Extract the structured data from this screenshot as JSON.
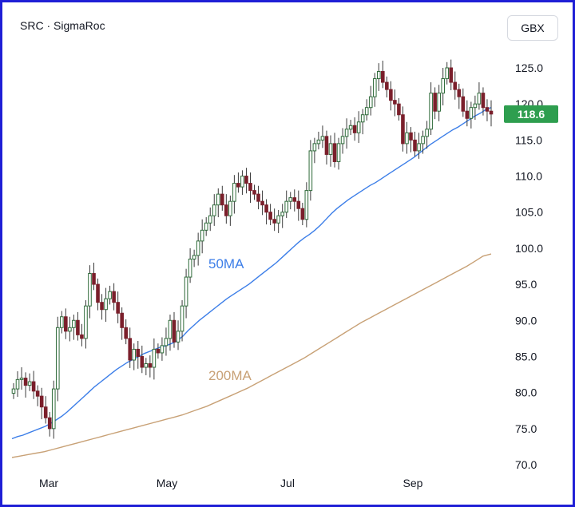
{
  "header": {
    "title": "SRC · SigmaRoc",
    "currency_button": "GBX"
  },
  "chart_data": {
    "type": "candlestick",
    "title": "SRC · SigmaRoc",
    "currency": "GBX",
    "ylim": [
      70,
      127
    ],
    "y_ticks": [
      "125.0",
      "120.0",
      "115.0",
      "110.0",
      "105.0",
      "100.0",
      "95.0",
      "90.0",
      "85.0",
      "80.0",
      "75.0",
      "70.0"
    ],
    "x_ticks": [
      "Mar",
      "May",
      "Jul",
      "Sep"
    ],
    "last_price": 118.6,
    "last_price_label": "118.6",
    "colors": {
      "up": "#2f6b3a",
      "down": "#7a1f2b",
      "wick": "#3a3a3a",
      "ma50": "#3c7ee8",
      "ma200": "#c8a176",
      "last": "#2e9e4f"
    },
    "annotations": [
      {
        "label": "50MA",
        "color": "#3c7ee8"
      },
      {
        "label": "200MA",
        "color": "#c8a176"
      }
    ],
    "series": [
      {
        "name": "SRC",
        "close": [
          80.5,
          81.8,
          82.0,
          81.0,
          81.5,
          80.2,
          79.5,
          78.0,
          76.5,
          75.0,
          80.5,
          89.0,
          90.5,
          88.5,
          89.0,
          90.0,
          88.0,
          87.5,
          92.0,
          96.5,
          95.0,
          92.5,
          91.5,
          93.0,
          94.0,
          92.5,
          91.0,
          89.0,
          87.5,
          84.5,
          86.0,
          85.0,
          83.5,
          84.0,
          83.5,
          86.0,
          85.5,
          86.5,
          87.5,
          90.0,
          87.0,
          88.5,
          92.0,
          96.0,
          98.5,
          99.0,
          101.0,
          102.5,
          103.5,
          104.5,
          106.0,
          107.5,
          106.0,
          104.5,
          106.5,
          109.0,
          108.5,
          110.0,
          109.0,
          108.0,
          107.5,
          106.5,
          106.0,
          105.0,
          104.0,
          103.5,
          104.5,
          105.0,
          106.5,
          107.0,
          106.5,
          105.5,
          104.0,
          108.0,
          113.5,
          114.5,
          115.0,
          115.5,
          113.0,
          114.5,
          112.0,
          114.5,
          115.5,
          116.5,
          117.0,
          116.0,
          117.5,
          118.5,
          119.5,
          121.0,
          123.5,
          124.5,
          123.0,
          122.0,
          120.5,
          120.0,
          118.5,
          114.5,
          116.0,
          115.0,
          113.5,
          114.5,
          115.5,
          116.5,
          121.5,
          119.0,
          121.5,
          123.5,
          125.0,
          123.0,
          122.0,
          121.0,
          119.0,
          118.0,
          119.5,
          120.0,
          121.5,
          119.5,
          119.0,
          118.6
        ],
        "ma50": [
          73.6,
          73.9,
          74.1,
          74.4,
          74.7,
          75.0,
          75.3,
          75.7,
          76.2,
          76.7,
          77.3,
          78.0,
          78.7,
          79.4,
          80.1,
          80.8,
          81.4,
          82.0,
          82.6,
          83.2,
          83.7,
          84.2,
          84.6,
          85.0,
          85.4,
          85.7,
          86.0,
          86.3,
          86.5,
          86.8,
          87.2,
          87.8,
          88.6,
          89.3,
          90.0,
          90.6,
          91.2,
          91.8,
          92.4,
          93.0,
          93.5,
          94.0,
          94.5,
          95.0,
          95.6,
          96.2,
          96.8,
          97.4,
          98.0,
          98.7,
          99.4,
          100.1,
          100.8,
          101.4,
          101.9,
          102.5,
          103.2,
          104.0,
          104.8,
          105.5,
          106.1,
          106.7,
          107.2,
          107.7,
          108.2,
          108.7,
          109.1,
          109.6,
          110.1,
          110.6,
          111.1,
          111.6,
          112.1,
          112.6,
          113.2,
          113.8,
          114.4,
          114.9,
          115.4,
          115.9,
          116.4,
          116.8,
          117.3,
          117.8,
          118.3,
          118.7,
          119.2,
          119.5
        ],
        "ma200": [
          71.0,
          71.2,
          71.4,
          71.6,
          71.8,
          72.1,
          72.4,
          72.7,
          73.0,
          73.3,
          73.6,
          73.9,
          74.2,
          74.5,
          74.8,
          75.1,
          75.4,
          75.7,
          76.0,
          76.3,
          76.6,
          76.9,
          77.3,
          77.7,
          78.1,
          78.6,
          79.1,
          79.6,
          80.1,
          80.6,
          81.2,
          81.8,
          82.4,
          83.0,
          83.6,
          84.2,
          84.8,
          85.5,
          86.2,
          86.9,
          87.6,
          88.3,
          89.0,
          89.7,
          90.3,
          90.9,
          91.5,
          92.1,
          92.7,
          93.3,
          93.9,
          94.5,
          95.1,
          95.7,
          96.3,
          96.9,
          97.5,
          98.2,
          98.9,
          99.2
        ]
      }
    ]
  }
}
